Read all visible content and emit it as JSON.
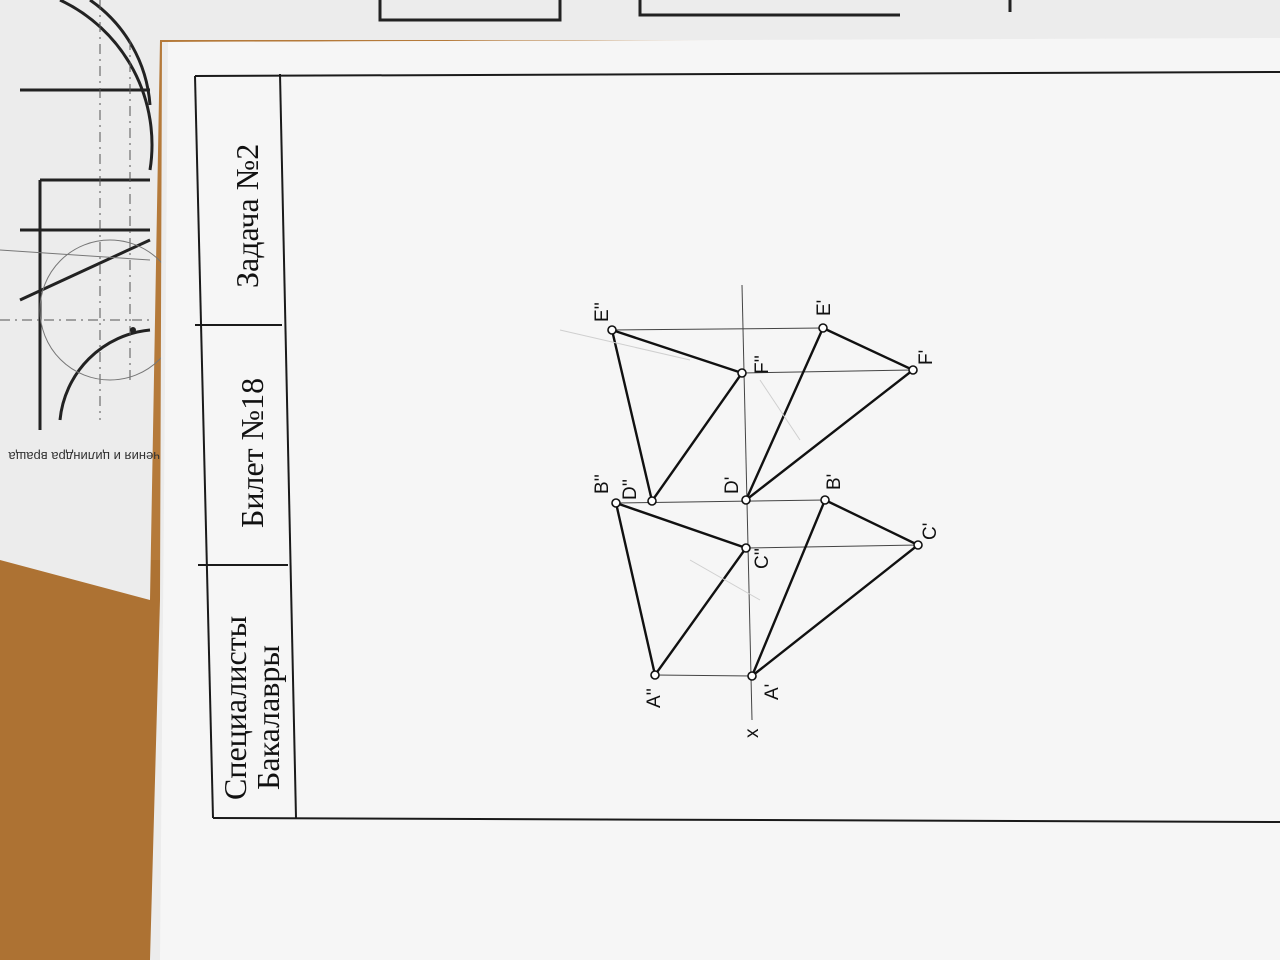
{
  "photo": {
    "desk_color": "#b57a3a",
    "paper_color": "#f6f6f6",
    "under_sheet_color": "#ececec",
    "under_sheet_caption": "чения и цилиндра враща"
  },
  "title_block": {
    "category_line1": "Специалисты",
    "category_line2": "Бакалавры",
    "ticket": "Билет №18",
    "task": "Задача №2"
  },
  "drawing": {
    "axis_label": "x",
    "points": {
      "A2": "A''",
      "B2": "B''",
      "C2": "C''",
      "D2": "D''",
      "E2": "E''",
      "F2": "F''",
      "A1": "A'",
      "B1": "B'",
      "C1": "C'",
      "D1": "D'",
      "E1": "E'",
      "F1": "F'"
    }
  }
}
